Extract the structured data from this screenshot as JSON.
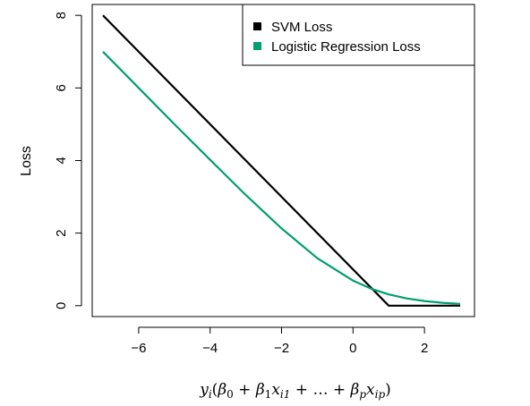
{
  "chart_data": {
    "type": "line",
    "title": "",
    "xlabel": "y_i(β_0 + β_1x_i1 + … + β_px_ip)",
    "ylabel": "Loss",
    "xlim": [
      -7.3,
      3.4
    ],
    "ylim": [
      -0.3,
      8.3
    ],
    "xticks": [
      -6,
      -4,
      -2,
      0,
      2
    ],
    "xtick_labels": [
      "−6",
      "−4",
      "−2",
      "0",
      "2"
    ],
    "yticks": [
      0,
      2,
      4,
      6,
      8
    ],
    "ytick_labels": [
      "0",
      "2",
      "4",
      "6",
      "8"
    ],
    "grid": false,
    "legend_position": "top-right",
    "series": [
      {
        "name": "SVM Loss",
        "color": "#000000",
        "x": [
          -7,
          1,
          3
        ],
        "y": [
          8,
          0,
          0
        ]
      },
      {
        "name": "Logistic Regression Loss",
        "color": "#009e73",
        "x": [
          -7,
          -6,
          -5,
          -4,
          -3,
          -2,
          -1,
          0,
          0.5,
          1,
          1.5,
          2,
          2.5,
          3
        ],
        "y": [
          7.0,
          6.0,
          5.0,
          4.02,
          3.05,
          2.13,
          1.31,
          0.69,
          0.47,
          0.31,
          0.2,
          0.13,
          0.08,
          0.05
        ]
      }
    ]
  }
}
